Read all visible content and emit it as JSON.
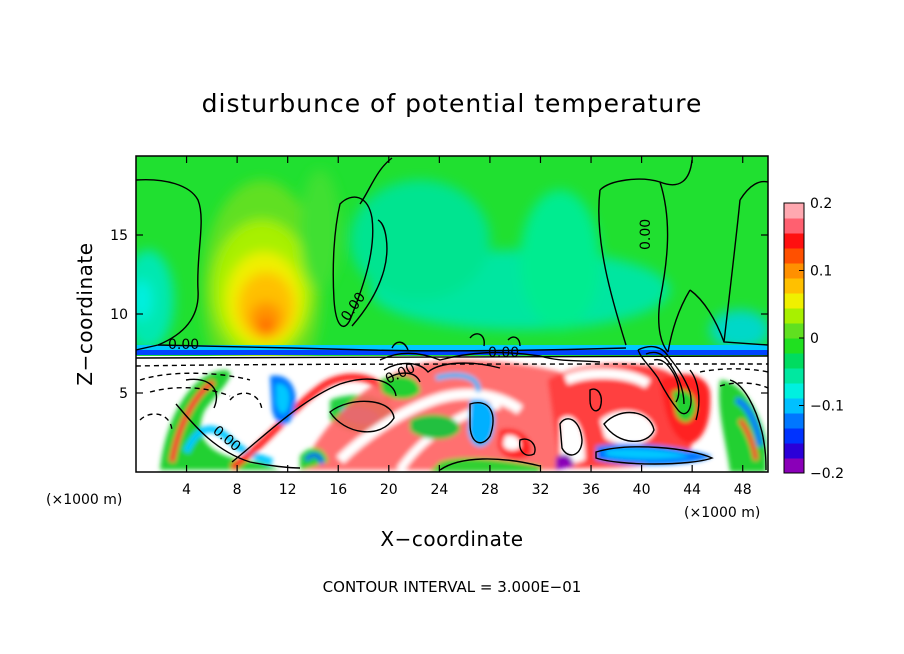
{
  "chart_data": {
    "type": "heatmap",
    "title": "disturbunce of potential temperature",
    "xlabel": "X−coordinate",
    "ylabel": "Z−coordinate",
    "x_unit": "(×1000 m)",
    "z_unit": "(×1000 m)",
    "xlim": [
      0,
      50
    ],
    "ylim": [
      0,
      20
    ],
    "x_ticks": [
      4,
      8,
      12,
      16,
      20,
      24,
      28,
      32,
      36,
      40,
      44,
      48
    ],
    "x_tick_labels": [
      "4",
      "8",
      "12",
      "16",
      "20",
      "24",
      "28",
      "32",
      "36",
      "40",
      "44",
      "48"
    ],
    "y_ticks": [
      5,
      10,
      15
    ],
    "y_tick_labels": [
      "5",
      "10",
      "15"
    ],
    "colorbar": {
      "range": [
        -0.2,
        0.2
      ],
      "ticks": [
        0.2,
        0.1,
        0,
        -0.1,
        -0.2
      ],
      "tick_labels": [
        "0.2",
        "0.1",
        "0",
        "−0.1",
        "−0.2"
      ],
      "colors": [
        "#8a00b8",
        "#2a00d8",
        "#0033ff",
        "#0077ff",
        "#00c0ff",
        "#00f0e0",
        "#00e8a0",
        "#00dc60",
        "#20e020",
        "#60e020",
        "#a8f000",
        "#f0f000",
        "#ffc000",
        "#ff9000",
        "#ff5000",
        "#ff1010",
        "#ff6070",
        "#ffa8b0"
      ]
    },
    "contour_labels": [
      "0.00",
      "0.00",
      "0.00",
      "0.00",
      "0.00",
      "0.00"
    ],
    "contour_interval_text": "CONTOUR INTERVAL = 3.000E−01"
  }
}
